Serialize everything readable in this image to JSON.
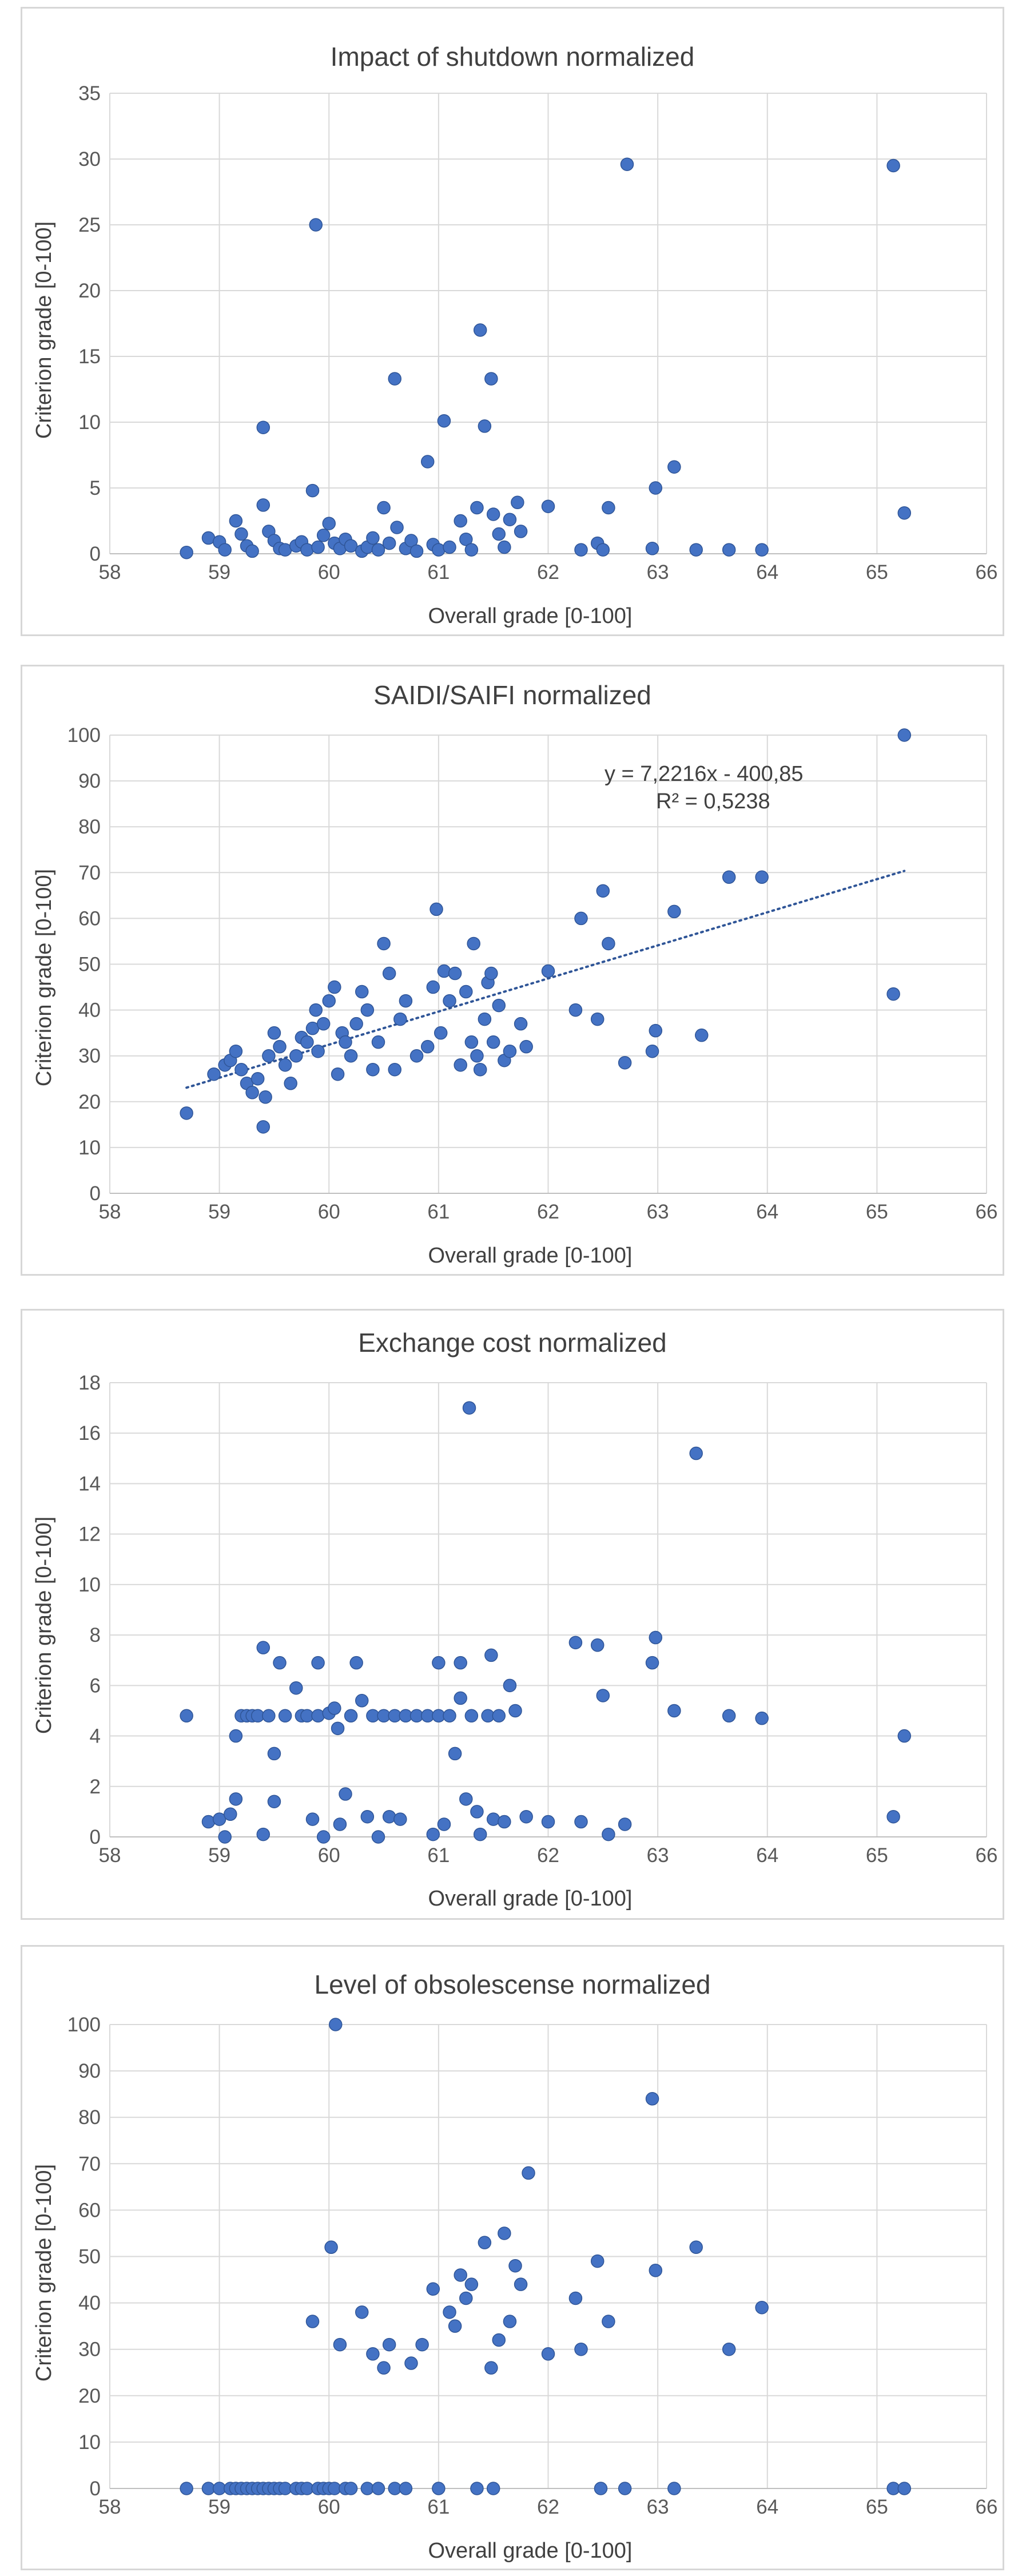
{
  "chart_data": [
    {
      "type": "scatter",
      "title": "Impact of shutdown normalized",
      "xlabel": "Overall grade [0-100]",
      "ylabel": "Criterion grade [0-100]",
      "xlim": [
        58,
        66
      ],
      "ylim": [
        0,
        35
      ],
      "xticks": [
        58,
        59,
        60,
        61,
        62,
        63,
        64,
        65,
        66
      ],
      "yticks": [
        0,
        5,
        10,
        15,
        20,
        25,
        30,
        35
      ],
      "grid": true,
      "color": "#4472c4",
      "points": [
        [
          58.7,
          0.1
        ],
        [
          58.9,
          1.2
        ],
        [
          59.0,
          0.9
        ],
        [
          59.05,
          0.3
        ],
        [
          59.15,
          2.5
        ],
        [
          59.2,
          1.5
        ],
        [
          59.25,
          0.6
        ],
        [
          59.3,
          0.2
        ],
        [
          59.4,
          9.6
        ],
        [
          59.4,
          3.7
        ],
        [
          59.45,
          1.7
        ],
        [
          59.5,
          1.0
        ],
        [
          59.55,
          0.4
        ],
        [
          59.6,
          0.3
        ],
        [
          59.7,
          0.6
        ],
        [
          59.75,
          0.9
        ],
        [
          59.8,
          0.3
        ],
        [
          59.85,
          4.8
        ],
        [
          59.88,
          25.0
        ],
        [
          59.9,
          0.5
        ],
        [
          59.95,
          1.4
        ],
        [
          60.0,
          2.3
        ],
        [
          60.05,
          0.8
        ],
        [
          60.1,
          0.4
        ],
        [
          60.15,
          1.1
        ],
        [
          60.2,
          0.6
        ],
        [
          60.3,
          0.2
        ],
        [
          60.35,
          0.5
        ],
        [
          60.4,
          1.2
        ],
        [
          60.45,
          0.3
        ],
        [
          60.5,
          3.5
        ],
        [
          60.55,
          0.8
        ],
        [
          60.6,
          13.3
        ],
        [
          60.62,
          2.0
        ],
        [
          60.7,
          0.4
        ],
        [
          60.75,
          1.0
        ],
        [
          60.8,
          0.2
        ],
        [
          60.9,
          7.0
        ],
        [
          60.95,
          0.7
        ],
        [
          61.0,
          0.3
        ],
        [
          61.05,
          10.1
        ],
        [
          61.1,
          0.5
        ],
        [
          61.2,
          2.5
        ],
        [
          61.25,
          1.1
        ],
        [
          61.3,
          0.3
        ],
        [
          61.35,
          3.5
        ],
        [
          61.38,
          17.0
        ],
        [
          61.42,
          9.7
        ],
        [
          61.48,
          13.3
        ],
        [
          61.5,
          3.0
        ],
        [
          61.55,
          1.5
        ],
        [
          61.6,
          0.5
        ],
        [
          61.65,
          2.6
        ],
        [
          61.72,
          3.9
        ],
        [
          61.75,
          1.7
        ],
        [
          62.0,
          3.6
        ],
        [
          62.3,
          0.3
        ],
        [
          62.45,
          0.8
        ],
        [
          62.5,
          0.3
        ],
        [
          62.55,
          3.5
        ],
        [
          62.72,
          29.6
        ],
        [
          62.95,
          0.4
        ],
        [
          62.98,
          5.0
        ],
        [
          63.15,
          6.6
        ],
        [
          63.35,
          0.3
        ],
        [
          63.65,
          0.3
        ],
        [
          63.95,
          0.3
        ],
        [
          65.15,
          29.5
        ],
        [
          65.25,
          3.1
        ]
      ]
    },
    {
      "type": "scatter",
      "title": "SAIDI/SAIFI normalized",
      "xlabel": "Overall grade [0-100]",
      "ylabel": "Criterion grade [0-100]",
      "xlim": [
        58,
        66
      ],
      "ylim": [
        0,
        100
      ],
      "xticks": [
        58,
        59,
        60,
        61,
        62,
        63,
        64,
        65,
        66
      ],
      "yticks": [
        0,
        10,
        20,
        30,
        40,
        50,
        60,
        70,
        80,
        90,
        100
      ],
      "grid": true,
      "color": "#4472c4",
      "trendline": {
        "equation": "y = 7,2216x - 400,85",
        "r2": "R² = 0,5238",
        "slope": 7.2216,
        "intercept": -400.85,
        "x_range": [
          58.7,
          65.25
        ]
      },
      "points": [
        [
          58.7,
          17.5
        ],
        [
          58.95,
          26
        ],
        [
          59.05,
          28
        ],
        [
          59.1,
          29
        ],
        [
          59.15,
          31
        ],
        [
          59.2,
          27
        ],
        [
          59.25,
          24
        ],
        [
          59.3,
          22
        ],
        [
          59.35,
          25
        ],
        [
          59.4,
          14.5
        ],
        [
          59.42,
          21
        ],
        [
          59.45,
          30
        ],
        [
          59.5,
          35
        ],
        [
          59.55,
          32
        ],
        [
          59.6,
          28
        ],
        [
          59.65,
          24
        ],
        [
          59.7,
          30
        ],
        [
          59.75,
          34
        ],
        [
          59.8,
          33
        ],
        [
          59.85,
          36
        ],
        [
          59.88,
          40
        ],
        [
          59.9,
          31
        ],
        [
          59.95,
          37
        ],
        [
          60.0,
          42
        ],
        [
          60.05,
          45
        ],
        [
          60.08,
          26
        ],
        [
          60.12,
          35
        ],
        [
          60.15,
          33
        ],
        [
          60.2,
          30
        ],
        [
          60.25,
          37
        ],
        [
          60.3,
          44
        ],
        [
          60.35,
          40
        ],
        [
          60.4,
          27
        ],
        [
          60.45,
          33
        ],
        [
          60.5,
          54.5
        ],
        [
          60.55,
          48
        ],
        [
          60.6,
          27
        ],
        [
          60.65,
          38
        ],
        [
          60.7,
          42
        ],
        [
          60.8,
          30
        ],
        [
          60.9,
          32
        ],
        [
          60.95,
          45
        ],
        [
          60.98,
          62
        ],
        [
          61.02,
          35
        ],
        [
          61.05,
          48.5
        ],
        [
          61.1,
          42
        ],
        [
          61.15,
          48
        ],
        [
          61.2,
          28
        ],
        [
          61.25,
          44
        ],
        [
          61.3,
          33
        ],
        [
          61.32,
          54.5
        ],
        [
          61.35,
          30
        ],
        [
          61.38,
          27
        ],
        [
          61.42,
          38
        ],
        [
          61.45,
          46
        ],
        [
          61.48,
          48
        ],
        [
          61.5,
          33
        ],
        [
          61.55,
          41
        ],
        [
          61.6,
          29
        ],
        [
          61.65,
          31
        ],
        [
          61.75,
          37
        ],
        [
          61.8,
          32
        ],
        [
          62.0,
          48.5
        ],
        [
          62.25,
          40
        ],
        [
          62.3,
          60
        ],
        [
          62.45,
          38
        ],
        [
          62.5,
          66
        ],
        [
          62.55,
          54.5
        ],
        [
          62.7,
          28.5
        ],
        [
          62.95,
          31
        ],
        [
          62.98,
          35.5
        ],
        [
          63.15,
          61.5
        ],
        [
          63.4,
          34.5
        ],
        [
          63.65,
          69
        ],
        [
          63.95,
          69
        ],
        [
          65.15,
          43.5
        ],
        [
          65.25,
          100
        ]
      ]
    },
    {
      "type": "scatter",
      "title": "Exchange cost normalized",
      "xlabel": "Overall grade [0-100]",
      "ylabel": "Criterion grade [0-100]",
      "xlim": [
        58,
        66
      ],
      "ylim": [
        0,
        18
      ],
      "xticks": [
        58,
        59,
        60,
        61,
        62,
        63,
        64,
        65,
        66
      ],
      "yticks": [
        0,
        2,
        4,
        6,
        8,
        10,
        12,
        14,
        16,
        18
      ],
      "grid": true,
      "color": "#4472c4",
      "points": [
        [
          58.7,
          4.8
        ],
        [
          58.9,
          0.6
        ],
        [
          59.0,
          0.7
        ],
        [
          59.05,
          0.0
        ],
        [
          59.1,
          0.9
        ],
        [
          59.15,
          1.5
        ],
        [
          59.15,
          4.0
        ],
        [
          59.2,
          4.8
        ],
        [
          59.25,
          4.8
        ],
        [
          59.3,
          4.8
        ],
        [
          59.35,
          4.8
        ],
        [
          59.4,
          7.5
        ],
        [
          59.4,
          0.1
        ],
        [
          59.45,
          4.8
        ],
        [
          59.5,
          3.3
        ],
        [
          59.5,
          1.4
        ],
        [
          59.55,
          6.9
        ],
        [
          59.6,
          4.8
        ],
        [
          59.7,
          5.9
        ],
        [
          59.75,
          4.8
        ],
        [
          59.8,
          4.8
        ],
        [
          59.85,
          0.7
        ],
        [
          59.9,
          6.9
        ],
        [
          59.9,
          4.8
        ],
        [
          59.95,
          0.0
        ],
        [
          60.0,
          4.9
        ],
        [
          60.05,
          5.1
        ],
        [
          60.08,
          4.3
        ],
        [
          60.1,
          0.5
        ],
        [
          60.15,
          1.7
        ],
        [
          60.2,
          4.8
        ],
        [
          60.25,
          6.9
        ],
        [
          60.3,
          5.4
        ],
        [
          60.35,
          0.8
        ],
        [
          60.4,
          4.8
        ],
        [
          60.45,
          0.0
        ],
        [
          60.5,
          4.8
        ],
        [
          60.55,
          0.8
        ],
        [
          60.6,
          4.8
        ],
        [
          60.65,
          0.7
        ],
        [
          60.7,
          4.8
        ],
        [
          60.8,
          4.8
        ],
        [
          60.9,
          4.8
        ],
        [
          60.95,
          0.1
        ],
        [
          61.0,
          6.9
        ],
        [
          61.0,
          4.8
        ],
        [
          61.05,
          0.5
        ],
        [
          61.1,
          4.8
        ],
        [
          61.15,
          3.3
        ],
        [
          61.2,
          5.5
        ],
        [
          61.2,
          6.9
        ],
        [
          61.25,
          1.5
        ],
        [
          61.28,
          17.0
        ],
        [
          61.3,
          4.8
        ],
        [
          61.35,
          1.0
        ],
        [
          61.38,
          0.1
        ],
        [
          61.45,
          4.8
        ],
        [
          61.48,
          7.2
        ],
        [
          61.5,
          0.7
        ],
        [
          61.55,
          4.8
        ],
        [
          61.6,
          0.6
        ],
        [
          61.65,
          6.0
        ],
        [
          61.7,
          5.0
        ],
        [
          61.8,
          0.8
        ],
        [
          62.0,
          0.6
        ],
        [
          62.25,
          7.7
        ],
        [
          62.3,
          0.6
        ],
        [
          62.45,
          7.6
        ],
        [
          62.5,
          5.6
        ],
        [
          62.55,
          0.1
        ],
        [
          62.7,
          0.5
        ],
        [
          62.95,
          6.9
        ],
        [
          62.98,
          7.9
        ],
        [
          63.15,
          5.0
        ],
        [
          63.35,
          15.2
        ],
        [
          63.65,
          4.8
        ],
        [
          63.95,
          4.7
        ],
        [
          65.15,
          0.8
        ],
        [
          65.25,
          4.0
        ]
      ]
    },
    {
      "type": "scatter",
      "title": "Level of obsolescense normalized",
      "xlabel": "Overall grade [0-100]",
      "ylabel": "Criterion grade [0-100]",
      "xlim": [
        58,
        66
      ],
      "ylim": [
        0,
        100
      ],
      "xticks": [
        58,
        59,
        60,
        61,
        62,
        63,
        64,
        65,
        66
      ],
      "yticks": [
        0,
        10,
        20,
        30,
        40,
        50,
        60,
        70,
        80,
        90,
        100
      ],
      "grid": true,
      "color": "#4472c4",
      "points": [
        [
          58.7,
          0
        ],
        [
          58.9,
          0
        ],
        [
          59.0,
          0
        ],
        [
          59.1,
          0
        ],
        [
          59.15,
          0
        ],
        [
          59.2,
          0
        ],
        [
          59.25,
          0
        ],
        [
          59.3,
          0
        ],
        [
          59.35,
          0
        ],
        [
          59.4,
          0
        ],
        [
          59.45,
          0
        ],
        [
          59.5,
          0
        ],
        [
          59.55,
          0
        ],
        [
          59.6,
          0
        ],
        [
          59.7,
          0
        ],
        [
          59.75,
          0
        ],
        [
          59.8,
          0
        ],
        [
          59.85,
          36
        ],
        [
          59.9,
          0
        ],
        [
          59.95,
          0
        ],
        [
          60.0,
          0
        ],
        [
          60.02,
          52
        ],
        [
          60.05,
          0
        ],
        [
          60.06,
          100
        ],
        [
          60.1,
          31
        ],
        [
          60.15,
          0
        ],
        [
          60.2,
          0
        ],
        [
          60.3,
          38
        ],
        [
          60.35,
          0
        ],
        [
          60.4,
          29
        ],
        [
          60.45,
          0
        ],
        [
          60.5,
          26
        ],
        [
          60.55,
          31
        ],
        [
          60.6,
          0
        ],
        [
          60.7,
          0
        ],
        [
          60.75,
          27
        ],
        [
          60.85,
          31
        ],
        [
          60.95,
          43
        ],
        [
          61.0,
          0
        ],
        [
          61.1,
          38
        ],
        [
          61.15,
          35
        ],
        [
          61.2,
          46
        ],
        [
          61.25,
          41
        ],
        [
          61.3,
          44
        ],
        [
          61.35,
          0
        ],
        [
          61.42,
          53
        ],
        [
          61.48,
          26
        ],
        [
          61.5,
          0
        ],
        [
          61.55,
          32
        ],
        [
          61.6,
          55
        ],
        [
          61.65,
          36
        ],
        [
          61.7,
          48
        ],
        [
          61.75,
          44
        ],
        [
          61.82,
          68
        ],
        [
          62.0,
          29
        ],
        [
          62.25,
          41
        ],
        [
          62.3,
          30
        ],
        [
          62.45,
          49
        ],
        [
          62.48,
          0
        ],
        [
          62.55,
          36
        ],
        [
          62.7,
          0
        ],
        [
          62.95,
          84
        ],
        [
          62.98,
          47
        ],
        [
          63.15,
          0
        ],
        [
          63.35,
          52
        ],
        [
          63.65,
          30
        ],
        [
          63.95,
          39
        ],
        [
          65.15,
          0
        ],
        [
          65.25,
          0
        ]
      ]
    }
  ]
}
